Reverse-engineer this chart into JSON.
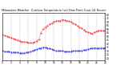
{
  "title": "Milwaukee Weather  Outdoor Temperature (vs) Dew Point (Last 24 Hours)",
  "bg_color": "#ffffff",
  "grid_color": "#888888",
  "temp_color": "#ff0000",
  "dew_color": "#0000dd",
  "y_ticks": [
    20,
    25,
    30,
    35,
    40,
    45,
    50,
    55,
    60,
    65,
    70,
    75,
    80
  ],
  "ylim": [
    17,
    83
  ],
  "xlim": [
    0,
    24
  ],
  "temp_x": [
    0,
    0.5,
    1,
    1.5,
    2,
    2.5,
    3,
    3.5,
    4,
    4.5,
    5,
    5.5,
    6,
    6.5,
    7,
    7.5,
    8,
    8.5,
    9,
    9.5,
    10,
    10.5,
    11,
    11.5,
    12,
    12.5,
    13,
    13.5,
    14,
    14.5,
    15,
    15.5,
    16,
    16.5,
    17,
    17.5,
    18,
    18.5,
    19,
    19.5,
    20,
    20.5,
    21,
    21.5,
    22,
    22.5,
    23,
    23.5,
    24
  ],
  "temp_y": [
    52,
    51,
    50,
    49,
    48,
    47,
    46,
    45,
    44,
    43,
    43,
    42,
    41,
    41,
    41,
    42,
    44,
    46,
    55,
    60,
    63,
    65,
    67,
    68,
    70,
    71,
    72,
    72,
    73,
    73,
    72,
    71,
    70,
    68,
    67,
    65,
    63,
    61,
    59,
    57,
    56,
    55,
    54,
    56,
    57,
    58,
    58,
    58,
    58
  ],
  "dew_x": [
    0,
    0.5,
    1,
    1.5,
    2,
    2.5,
    3,
    3.5,
    4,
    4.5,
    5,
    5.5,
    6,
    6.5,
    7,
    7.5,
    8,
    8.5,
    9,
    9.5,
    10,
    10.5,
    11,
    11.5,
    12,
    12.5,
    13,
    13.5,
    14,
    14.5,
    15,
    15.5,
    16,
    16.5,
    17,
    17.5,
    18,
    18.5,
    19,
    19.5,
    20,
    20.5,
    21,
    21.5,
    22,
    22.5,
    23,
    23.5,
    24
  ],
  "dew_y": [
    30,
    29,
    29,
    29,
    28,
    28,
    28,
    28,
    27,
    27,
    27,
    28,
    28,
    29,
    30,
    31,
    32,
    33,
    34,
    35,
    35,
    34,
    33,
    32,
    31,
    30,
    30,
    30,
    30,
    29,
    29,
    29,
    29,
    30,
    30,
    30,
    30,
    30,
    31,
    31,
    32,
    33,
    34,
    34,
    34,
    34,
    34,
    34,
    34
  ],
  "title_fontsize": 2.5,
  "tick_fontsize": 2.2,
  "linewidth": 0.6,
  "markersize": 0.8,
  "grid_linewidth": 0.3,
  "grid_x": [
    0,
    2,
    4,
    6,
    8,
    10,
    12,
    14,
    16,
    18,
    20,
    22,
    24
  ]
}
